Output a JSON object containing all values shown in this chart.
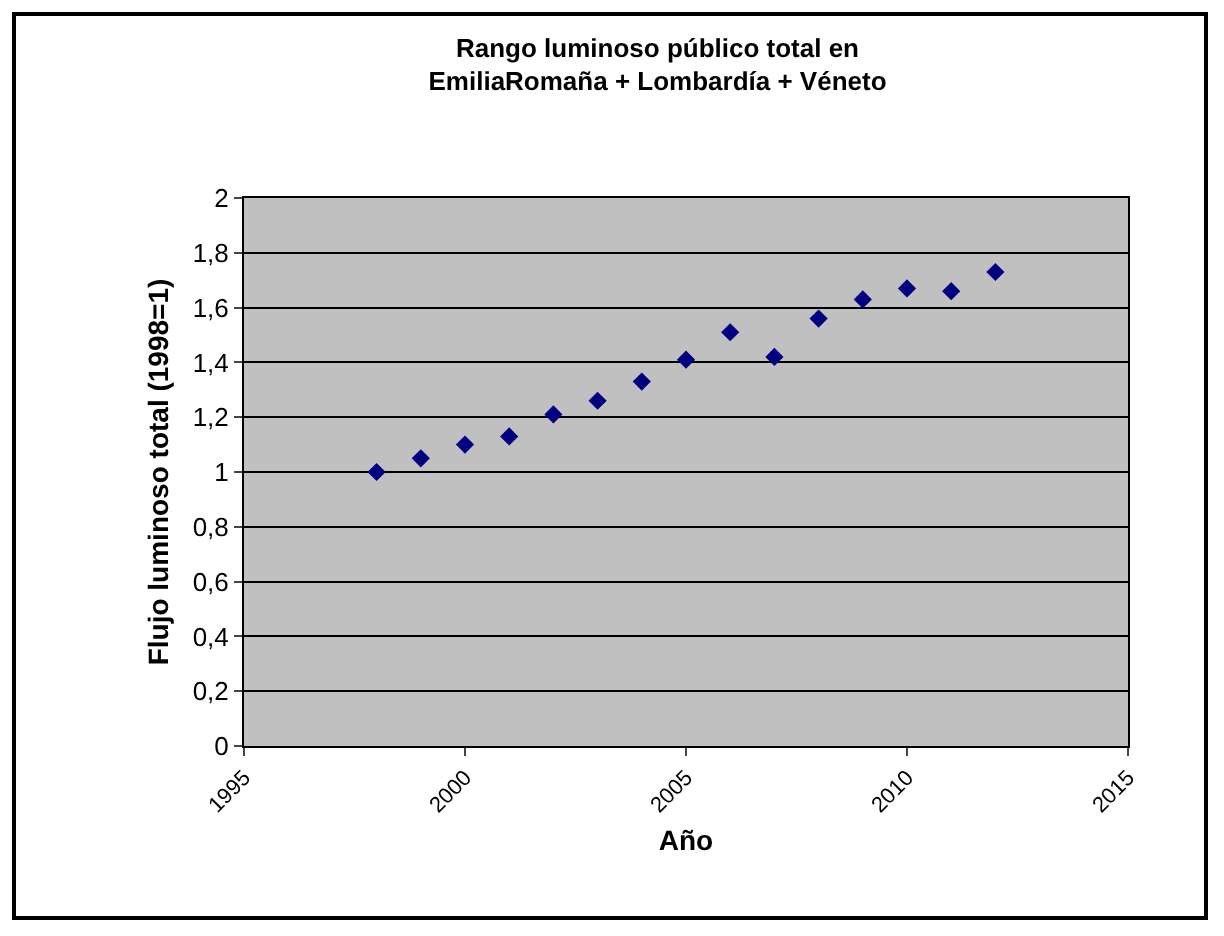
{
  "chart_data": {
    "type": "scatter",
    "title": "Rango luminoso público total en\nEmiliaRomaña + Lombardía + Véneto",
    "xlabel": "Año",
    "ylabel": "Flujo luminoso total (1998=1)",
    "x": [
      1998,
      1999,
      2000,
      2001,
      2002,
      2003,
      2004,
      2005,
      2006,
      2007,
      2008,
      2009,
      2010,
      2011,
      2012
    ],
    "series": [
      {
        "color": "#000080",
        "values": [
          1.0,
          1.05,
          1.1,
          1.13,
          1.21,
          1.26,
          1.33,
          1.41,
          1.51,
          1.42,
          1.56,
          1.63,
          1.67,
          1.66,
          1.73
        ]
      }
    ],
    "xlim": [
      1995,
      2015
    ],
    "xticks": [
      1995,
      2000,
      2005,
      2010,
      2015
    ],
    "ylim": [
      0,
      2
    ],
    "yticks": [
      0,
      {
        "value": 0.2,
        "label": "0,2"
      },
      {
        "value": 0.4,
        "label": "0,4"
      },
      {
        "value": 0.6,
        "label": "0,6"
      },
      {
        "value": 0.8,
        "label": "0,8"
      },
      1,
      {
        "value": 1.2,
        "label": "1,2"
      },
      {
        "value": 1.4,
        "label": "1,4"
      },
      {
        "value": 1.6,
        "label": "1,6"
      },
      {
        "value": 1.8,
        "label": "1,8"
      },
      2
    ],
    "grid": "y",
    "marker": "diamond"
  }
}
